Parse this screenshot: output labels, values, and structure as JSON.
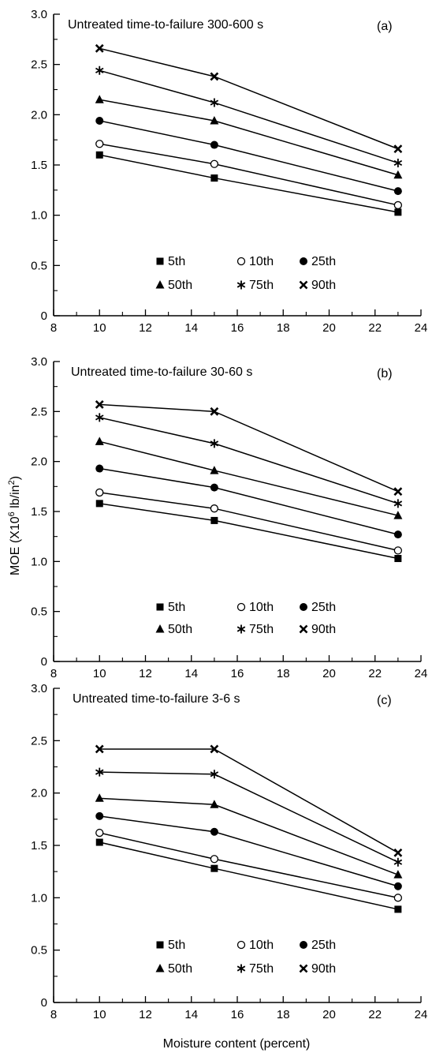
{
  "y_axis_label": {
    "main": "MOE (X10",
    "sup1": "6",
    "mid": " lb/in",
    "sup2": "2",
    "end": ")"
  },
  "x_axis_label": "Moisture content (percent)",
  "chart_data": [
    {
      "type": "line",
      "panel": "(a)",
      "title": "Untreated time-to-failure 300-600 s",
      "xlim": [
        8,
        24
      ],
      "ylim": [
        0,
        3.0
      ],
      "xticks": [
        "8",
        "10",
        "12",
        "14",
        "16",
        "18",
        "20",
        "22",
        "24"
      ],
      "yticks": [
        "0",
        "0.5",
        "1.0",
        "1.5",
        "2.0",
        "2.5",
        "3.0"
      ],
      "x": [
        10,
        15,
        23
      ],
      "series": [
        {
          "name": "5th",
          "marker": "square",
          "values": [
            1.6,
            1.37,
            1.03
          ]
        },
        {
          "name": "10th",
          "marker": "circle-open",
          "values": [
            1.71,
            1.51,
            1.1
          ]
        },
        {
          "name": "25th",
          "marker": "circle-filled",
          "values": [
            1.94,
            1.7,
            1.24
          ]
        },
        {
          "name": "50th",
          "marker": "triangle",
          "values": [
            2.15,
            1.94,
            1.4
          ]
        },
        {
          "name": "75th",
          "marker": "asterisk",
          "values": [
            2.44,
            2.12,
            1.52
          ]
        },
        {
          "name": "90th",
          "marker": "cross",
          "values": [
            2.66,
            2.38,
            1.66
          ]
        }
      ]
    },
    {
      "type": "line",
      "panel": "(b)",
      "title": "Untreated time-to-failure 30-60 s",
      "xlim": [
        8,
        24
      ],
      "ylim": [
        0,
        3.0
      ],
      "xticks": [
        "8",
        "10",
        "12",
        "14",
        "16",
        "18",
        "20",
        "22",
        "24"
      ],
      "yticks": [
        "0",
        "0.5",
        "1.0",
        "1.5",
        "2.0",
        "2.5",
        "3.0"
      ],
      "x": [
        10,
        15,
        23
      ],
      "series": [
        {
          "name": "5th",
          "marker": "square",
          "values": [
            1.58,
            1.41,
            1.03
          ]
        },
        {
          "name": "10th",
          "marker": "circle-open",
          "values": [
            1.69,
            1.53,
            1.11
          ]
        },
        {
          "name": "25th",
          "marker": "circle-filled",
          "values": [
            1.93,
            1.74,
            1.27
          ]
        },
        {
          "name": "50th",
          "marker": "triangle",
          "values": [
            2.2,
            1.91,
            1.46
          ]
        },
        {
          "name": "75th",
          "marker": "asterisk",
          "values": [
            2.44,
            2.18,
            1.58
          ]
        },
        {
          "name": "90th",
          "marker": "cross",
          "values": [
            2.57,
            2.5,
            1.7
          ]
        }
      ]
    },
    {
      "type": "line",
      "panel": "(c)",
      "title": "Untreated time-to-failure 3-6 s",
      "xlim": [
        8,
        24
      ],
      "ylim": [
        0,
        3.0
      ],
      "xticks": [
        "8",
        "10",
        "12",
        "14",
        "16",
        "18",
        "20",
        "22",
        "24"
      ],
      "yticks": [
        "0",
        "0.5",
        "1.0",
        "1.5",
        "2.0",
        "2.5",
        "3.0"
      ],
      "x": [
        10,
        15,
        23
      ],
      "series": [
        {
          "name": "5th",
          "marker": "square",
          "values": [
            1.53,
            1.28,
            0.89
          ]
        },
        {
          "name": "10th",
          "marker": "circle-open",
          "values": [
            1.62,
            1.37,
            1.0
          ]
        },
        {
          "name": "25th",
          "marker": "circle-filled",
          "values": [
            1.78,
            1.63,
            1.11
          ]
        },
        {
          "name": "50th",
          "marker": "triangle",
          "values": [
            1.95,
            1.89,
            1.22
          ]
        },
        {
          "name": "75th",
          "marker": "asterisk",
          "values": [
            2.2,
            2.18,
            1.34
          ]
        },
        {
          "name": "90th",
          "marker": "cross",
          "values": [
            2.42,
            2.42,
            1.43
          ]
        }
      ]
    }
  ]
}
